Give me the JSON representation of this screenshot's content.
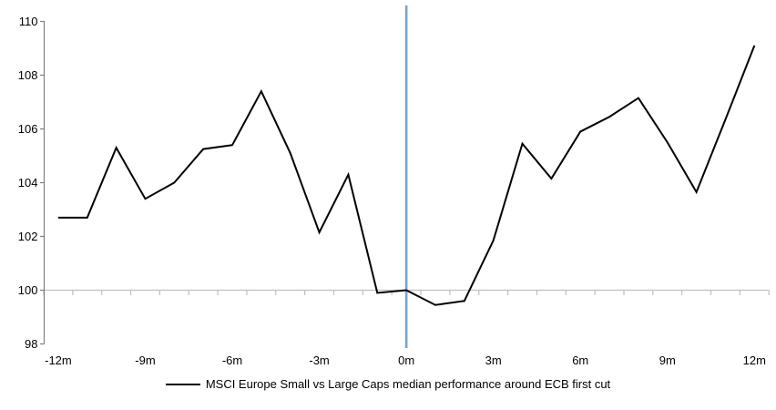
{
  "page": {
    "background": "#ffffff"
  },
  "legend": {
    "label": "MSCI Europe Small vs Large Caps median performance around ECB first cut",
    "line_color": "#000000"
  },
  "chart_data": {
    "type": "line",
    "title": "",
    "xlabel": "",
    "ylabel": "",
    "categories": [
      "-12m",
      "-11m",
      "-10m",
      "-9m",
      "-8m",
      "-7m",
      "-6m",
      "-5m",
      "-4m",
      "-3m",
      "-2m",
      "-1m",
      "0m",
      "1m",
      "2m",
      "3m",
      "4m",
      "5m",
      "6m",
      "7m",
      "8m",
      "9m",
      "10m",
      "11m",
      "12m"
    ],
    "series": [
      {
        "name": "MSCI Europe Small vs Large Caps median performance around ECB first cut",
        "color": "#000000",
        "values": [
          102.7,
          102.7,
          105.3,
          103.4,
          104.0,
          105.25,
          105.4,
          107.4,
          105.1,
          102.15,
          104.3,
          99.9,
          100.0,
          99.45,
          99.6,
          101.85,
          105.45,
          104.15,
          105.9,
          106.45,
          107.15,
          105.5,
          103.65,
          106.35,
          109.1
        ]
      }
    ],
    "ylim": [
      98,
      110
    ],
    "y_ticks": [
      98,
      100,
      102,
      104,
      106,
      108,
      110
    ],
    "x_tick_labels": [
      "-12m",
      "-9m",
      "-6m",
      "-3m",
      "0m",
      "3m",
      "6m",
      "9m",
      "12m"
    ],
    "x_label_every": 3,
    "baseline_value": 100,
    "event_line": {
      "at_category": "0m",
      "color": "#74A4CF"
    },
    "grid": "off",
    "axis_color": "#808080",
    "baseline_color": "#BFBFBF",
    "legend_position": "bottom-center"
  }
}
